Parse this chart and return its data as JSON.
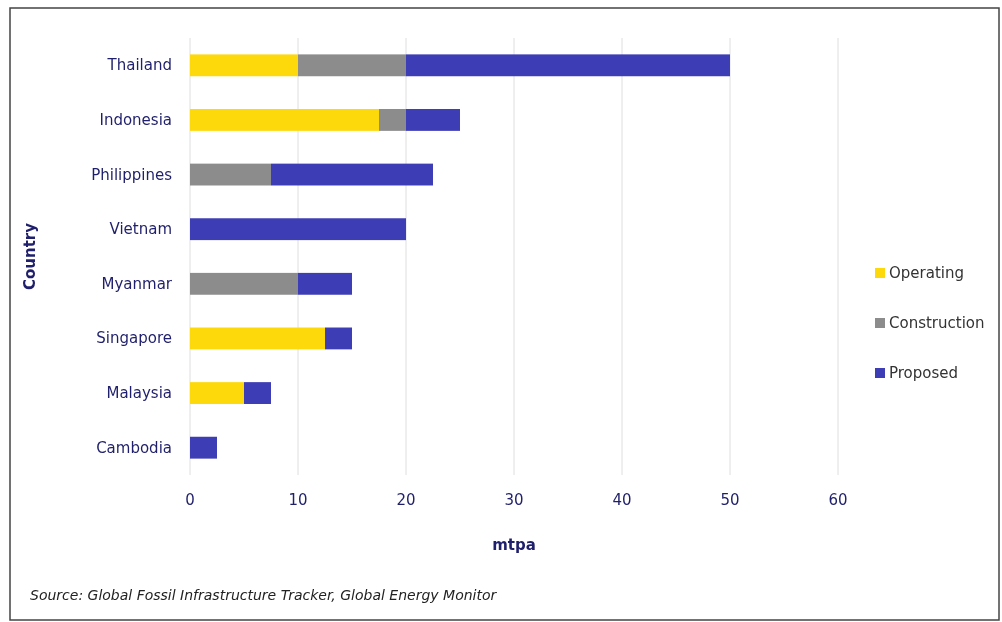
{
  "chart_data": {
    "type": "bar",
    "orientation": "horizontal",
    "stacked": true,
    "categories": [
      "Thailand",
      "Indonesia",
      "Philippines",
      "Vietnam",
      "Myanmar",
      "Singapore",
      "Malaysia",
      "Cambodia"
    ],
    "series": [
      {
        "name": "Operating",
        "color": "#fdd90c",
        "values": [
          10,
          17.5,
          0,
          0,
          0,
          12.5,
          5,
          0
        ]
      },
      {
        "name": "Construction",
        "color": "#8c8c8c",
        "values": [
          10,
          2.5,
          7.5,
          0,
          10,
          0,
          0,
          0
        ]
      },
      {
        "name": "Proposed",
        "color": "#3d3db5",
        "values": [
          30,
          5,
          15,
          20,
          5,
          2.5,
          2.5,
          2.5
        ]
      }
    ],
    "xlim": [
      0,
      60
    ],
    "xticks": [
      0,
      10,
      20,
      30,
      40,
      50,
      60
    ],
    "xlabel": "mtpa",
    "ylabel": "Country",
    "grid": "x",
    "legend": "right",
    "annotations": [
      "Source: Global Fossil Infrastructure Tracker, Global Energy Monitor"
    ]
  }
}
